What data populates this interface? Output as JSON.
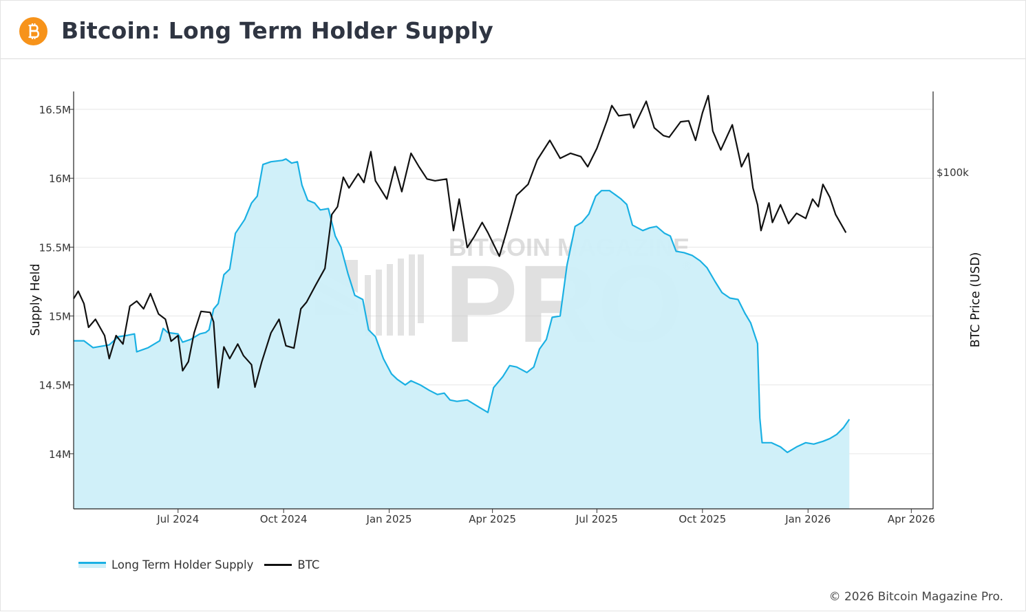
{
  "header": {
    "title": "Bitcoin: Long Term Holder Supply",
    "logo_icon": "bitcoin-logo-icon",
    "logo_color": "#f7931a"
  },
  "watermark": {
    "line1": "BITCOIN MAGAZINE",
    "line2": "PRO",
    "mark": "®"
  },
  "legend": {
    "items": [
      {
        "label": "Long Term Holder Supply",
        "color": "#1ab0e3"
      },
      {
        "label": "BTC",
        "color": "#111111"
      }
    ]
  },
  "copyright": "© 2026 Bitcoin Magazine Pro.",
  "chart_data": {
    "type": "line",
    "x_axis": {
      "type": "date",
      "range": [
        "2024-04-01",
        "2026-04-20"
      ],
      "ticks": [
        {
          "date": "2024-07-01",
          "label": "Jul 2024"
        },
        {
          "date": "2024-10-01",
          "label": "Oct 2024"
        },
        {
          "date": "2025-01-01",
          "label": "Jan 2025"
        },
        {
          "date": "2025-04-01",
          "label": "Apr 2025"
        },
        {
          "date": "2025-07-01",
          "label": "Jul 2025"
        },
        {
          "date": "2025-10-01",
          "label": "Oct 2025"
        },
        {
          "date": "2026-01-01",
          "label": "Jan 2026"
        },
        {
          "date": "2026-04-01",
          "label": "Apr 2026"
        }
      ]
    },
    "y_axis_left": {
      "label": "Supply Held",
      "range": [
        13600000,
        16630000
      ],
      "ticks": [
        {
          "value": 14000000,
          "label": "14M"
        },
        {
          "value": 14500000,
          "label": "14.5M"
        },
        {
          "value": 15000000,
          "label": "15M"
        },
        {
          "value": 15500000,
          "label": "15.5M"
        },
        {
          "value": 16000000,
          "label": "16M"
        },
        {
          "value": 16500000,
          "label": "16.5M"
        }
      ],
      "grid": true
    },
    "y_axis_right": {
      "label": "BTC Price (USD)",
      "scale": "log",
      "range": [
        38000,
        126000
      ],
      "ticks": [
        {
          "value": 100000,
          "label": "$100k"
        }
      ]
    },
    "legend_position": "bottom-left",
    "series": [
      {
        "name": "Long Term Holder Supply",
        "axis": "left",
        "color": "#1ab0e3",
        "fill": "#cdeff9",
        "points": [
          [
            "2024-04-01",
            14820000
          ],
          [
            "2024-04-10",
            14820000
          ],
          [
            "2024-04-18",
            14770000
          ],
          [
            "2024-04-25",
            14780000
          ],
          [
            "2024-05-02",
            14790000
          ],
          [
            "2024-05-10",
            14850000
          ],
          [
            "2024-05-18",
            14860000
          ],
          [
            "2024-05-24",
            14870000
          ],
          [
            "2024-05-26",
            14740000
          ],
          [
            "2024-06-05",
            14770000
          ],
          [
            "2024-06-15",
            14820000
          ],
          [
            "2024-06-18",
            14910000
          ],
          [
            "2024-06-22",
            14880000
          ],
          [
            "2024-07-01",
            14870000
          ],
          [
            "2024-07-05",
            14810000
          ],
          [
            "2024-07-12",
            14830000
          ],
          [
            "2024-07-20",
            14870000
          ],
          [
            "2024-07-25",
            14880000
          ],
          [
            "2024-07-28",
            14900000
          ],
          [
            "2024-08-01",
            15050000
          ],
          [
            "2024-08-05",
            15090000
          ],
          [
            "2024-08-10",
            15300000
          ],
          [
            "2024-08-15",
            15340000
          ],
          [
            "2024-08-20",
            15600000
          ],
          [
            "2024-08-28",
            15700000
          ],
          [
            "2024-09-03",
            15820000
          ],
          [
            "2024-09-08",
            15870000
          ],
          [
            "2024-09-13",
            16100000
          ],
          [
            "2024-09-20",
            16120000
          ],
          [
            "2024-09-30",
            16130000
          ],
          [
            "2024-10-03",
            16140000
          ],
          [
            "2024-10-08",
            16110000
          ],
          [
            "2024-10-13",
            16120000
          ],
          [
            "2024-10-17",
            15950000
          ],
          [
            "2024-10-22",
            15840000
          ],
          [
            "2024-10-28",
            15820000
          ],
          [
            "2024-11-02",
            15770000
          ],
          [
            "2024-11-09",
            15780000
          ],
          [
            "2024-11-15",
            15580000
          ],
          [
            "2024-11-20",
            15500000
          ],
          [
            "2024-11-26",
            15310000
          ],
          [
            "2024-12-02",
            15150000
          ],
          [
            "2024-12-09",
            15120000
          ],
          [
            "2024-12-14",
            14900000
          ],
          [
            "2024-12-20",
            14850000
          ],
          [
            "2024-12-27",
            14690000
          ],
          [
            "2025-01-03",
            14580000
          ],
          [
            "2025-01-08",
            14540000
          ],
          [
            "2025-01-15",
            14500000
          ],
          [
            "2025-01-20",
            14530000
          ],
          [
            "2025-01-28",
            14500000
          ],
          [
            "2025-02-05",
            14460000
          ],
          [
            "2025-02-12",
            14430000
          ],
          [
            "2025-02-18",
            14440000
          ],
          [
            "2025-02-23",
            14390000
          ],
          [
            "2025-03-01",
            14380000
          ],
          [
            "2025-03-10",
            14390000
          ],
          [
            "2025-03-20",
            14340000
          ],
          [
            "2025-03-28",
            14300000
          ],
          [
            "2025-04-02",
            14480000
          ],
          [
            "2025-04-10",
            14560000
          ],
          [
            "2025-04-16",
            14640000
          ],
          [
            "2025-04-22",
            14630000
          ],
          [
            "2025-05-01",
            14590000
          ],
          [
            "2025-05-07",
            14630000
          ],
          [
            "2025-05-12",
            14760000
          ],
          [
            "2025-05-18",
            14830000
          ],
          [
            "2025-05-23",
            14990000
          ],
          [
            "2025-05-30",
            15000000
          ],
          [
            "2025-06-05",
            15370000
          ],
          [
            "2025-06-12",
            15650000
          ],
          [
            "2025-06-18",
            15680000
          ],
          [
            "2025-06-24",
            15740000
          ],
          [
            "2025-06-30",
            15870000
          ],
          [
            "2025-07-05",
            15910000
          ],
          [
            "2025-07-12",
            15910000
          ],
          [
            "2025-07-17",
            15880000
          ],
          [
            "2025-07-22",
            15850000
          ],
          [
            "2025-07-27",
            15810000
          ],
          [
            "2025-08-01",
            15660000
          ],
          [
            "2025-08-10",
            15620000
          ],
          [
            "2025-08-16",
            15640000
          ],
          [
            "2025-08-22",
            15650000
          ],
          [
            "2025-08-29",
            15600000
          ],
          [
            "2025-09-03",
            15580000
          ],
          [
            "2025-09-08",
            15470000
          ],
          [
            "2025-09-15",
            15460000
          ],
          [
            "2025-09-22",
            15440000
          ],
          [
            "2025-09-29",
            15400000
          ],
          [
            "2025-10-05",
            15350000
          ],
          [
            "2025-10-12",
            15250000
          ],
          [
            "2025-10-18",
            15170000
          ],
          [
            "2025-10-25",
            15130000
          ],
          [
            "2025-11-01",
            15120000
          ],
          [
            "2025-11-07",
            15020000
          ],
          [
            "2025-11-12",
            14950000
          ],
          [
            "2025-11-18",
            14800000
          ],
          [
            "2025-11-20",
            14260000
          ],
          [
            "2025-11-22",
            14080000
          ],
          [
            "2025-11-30",
            14080000
          ],
          [
            "2025-12-08",
            14050000
          ],
          [
            "2025-12-14",
            14010000
          ],
          [
            "2025-12-22",
            14050000
          ],
          [
            "2025-12-30",
            14080000
          ],
          [
            "2026-01-06",
            14070000
          ],
          [
            "2026-01-14",
            14090000
          ],
          [
            "2026-01-20",
            14110000
          ],
          [
            "2026-01-26",
            14140000
          ],
          [
            "2026-02-01",
            14190000
          ],
          [
            "2026-02-06",
            14250000
          ]
        ]
      },
      {
        "name": "BTC",
        "axis": "right",
        "color": "#111111",
        "points": [
          [
            "2024-04-01",
            69500
          ],
          [
            "2024-04-05",
            71000
          ],
          [
            "2024-04-10",
            68500
          ],
          [
            "2024-04-14",
            64000
          ],
          [
            "2024-04-20",
            65500
          ],
          [
            "2024-04-28",
            62500
          ],
          [
            "2024-05-02",
            58500
          ],
          [
            "2024-05-08",
            62500
          ],
          [
            "2024-05-14",
            61000
          ],
          [
            "2024-05-20",
            68000
          ],
          [
            "2024-05-26",
            69000
          ],
          [
            "2024-06-01",
            67500
          ],
          [
            "2024-06-07",
            70500
          ],
          [
            "2024-06-14",
            66500
          ],
          [
            "2024-06-20",
            65500
          ],
          [
            "2024-06-25",
            61500
          ],
          [
            "2024-07-01",
            62500
          ],
          [
            "2024-07-05",
            56500
          ],
          [
            "2024-07-10",
            58000
          ],
          [
            "2024-07-15",
            63000
          ],
          [
            "2024-07-21",
            67000
          ],
          [
            "2024-07-29",
            66800
          ],
          [
            "2024-08-01",
            65000
          ],
          [
            "2024-08-05",
            53800
          ],
          [
            "2024-08-10",
            60500
          ],
          [
            "2024-08-15",
            58500
          ],
          [
            "2024-08-22",
            61000
          ],
          [
            "2024-08-27",
            59000
          ],
          [
            "2024-09-03",
            57500
          ],
          [
            "2024-09-06",
            53900
          ],
          [
            "2024-09-12",
            58000
          ],
          [
            "2024-09-20",
            63000
          ],
          [
            "2024-09-27",
            65500
          ],
          [
            "2024-10-03",
            60700
          ],
          [
            "2024-10-10",
            60300
          ],
          [
            "2024-10-16",
            67500
          ],
          [
            "2024-10-21",
            68800
          ],
          [
            "2024-10-29",
            72300
          ],
          [
            "2024-11-06",
            75800
          ],
          [
            "2024-11-12",
            88500
          ],
          [
            "2024-11-17",
            90500
          ],
          [
            "2024-11-22",
            98500
          ],
          [
            "2024-11-27",
            95500
          ],
          [
            "2024-12-05",
            99500
          ],
          [
            "2024-12-10",
            97000
          ],
          [
            "2024-12-16",
            106000
          ],
          [
            "2024-12-20",
            97500
          ],
          [
            "2024-12-30",
            92500
          ],
          [
            "2025-01-06",
            101500
          ],
          [
            "2025-01-12",
            94500
          ],
          [
            "2025-01-20",
            105500
          ],
          [
            "2025-01-27",
            101500
          ],
          [
            "2025-02-03",
            98000
          ],
          [
            "2025-02-10",
            97500
          ],
          [
            "2025-02-20",
            98000
          ],
          [
            "2025-02-26",
            84500
          ],
          [
            "2025-03-03",
            92500
          ],
          [
            "2025-03-10",
            80500
          ],
          [
            "2025-03-16",
            83000
          ],
          [
            "2025-03-23",
            86500
          ],
          [
            "2025-03-28",
            84000
          ],
          [
            "2025-04-07",
            78500
          ],
          [
            "2025-04-13",
            84000
          ],
          [
            "2025-04-22",
            93500
          ],
          [
            "2025-05-02",
            96500
          ],
          [
            "2025-05-10",
            103500
          ],
          [
            "2025-05-21",
            109500
          ],
          [
            "2025-05-30",
            104000
          ],
          [
            "2025-06-08",
            105500
          ],
          [
            "2025-06-17",
            104500
          ],
          [
            "2025-06-23",
            101500
          ],
          [
            "2025-07-01",
            107000
          ],
          [
            "2025-07-10",
            116000
          ],
          [
            "2025-07-14",
            121000
          ],
          [
            "2025-07-20",
            117500
          ],
          [
            "2025-07-30",
            118000
          ],
          [
            "2025-08-02",
            113500
          ],
          [
            "2025-08-13",
            122500
          ],
          [
            "2025-08-20",
            113500
          ],
          [
            "2025-08-28",
            111000
          ],
          [
            "2025-09-02",
            110500
          ],
          [
            "2025-09-12",
            115500
          ],
          [
            "2025-09-19",
            115800
          ],
          [
            "2025-09-25",
            109500
          ],
          [
            "2025-10-01",
            118500
          ],
          [
            "2025-10-06",
            124500
          ],
          [
            "2025-10-10",
            112500
          ],
          [
            "2025-10-17",
            106500
          ],
          [
            "2025-10-27",
            114500
          ],
          [
            "2025-11-04",
            101500
          ],
          [
            "2025-11-10",
            105500
          ],
          [
            "2025-11-14",
            95500
          ],
          [
            "2025-11-18",
            91000
          ],
          [
            "2025-11-21",
            84500
          ],
          [
            "2025-11-28",
            91500
          ],
          [
            "2025-12-01",
            86500
          ],
          [
            "2025-12-08",
            91000
          ],
          [
            "2025-12-15",
            86200
          ],
          [
            "2025-12-22",
            88800
          ],
          [
            "2025-12-30",
            87500
          ],
          [
            "2026-01-05",
            92500
          ],
          [
            "2026-01-10",
            90500
          ],
          [
            "2026-01-14",
            96500
          ],
          [
            "2026-01-20",
            93000
          ],
          [
            "2026-01-25",
            88500
          ],
          [
            "2026-01-30",
            86000
          ],
          [
            "2026-02-03",
            84000
          ]
        ]
      }
    ]
  }
}
